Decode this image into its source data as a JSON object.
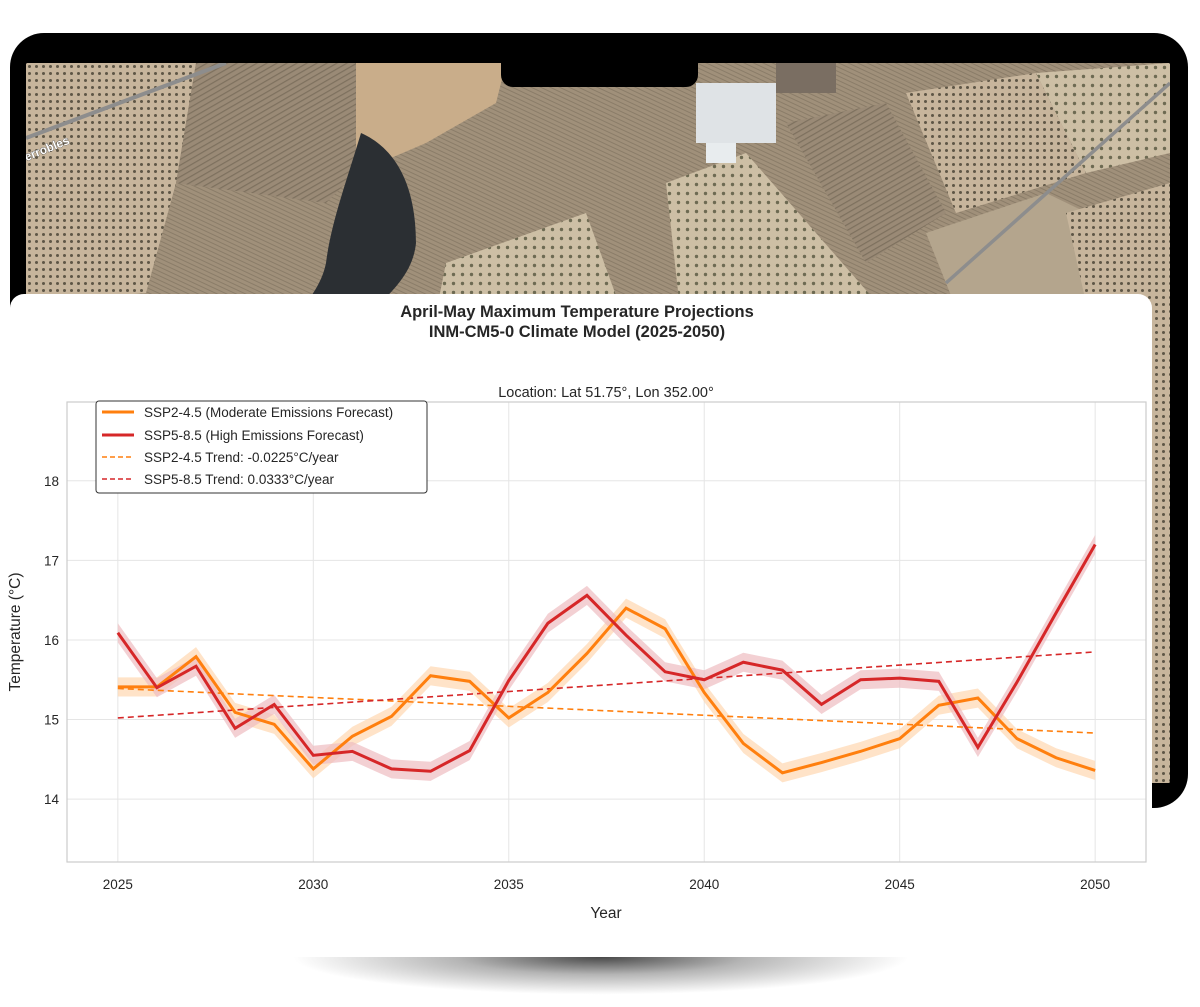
{
  "background": {
    "map_road_label": "errobles"
  },
  "colors": {
    "ssp245": "#ff7f0e",
    "ssp585": "#d62728",
    "ssp245_band": "#ffd7b0",
    "ssp585_band": "#eebcc0",
    "grid": "#e5e5e5",
    "spine": "#cccccc"
  },
  "chart_data": {
    "type": "line",
    "title_line1": "April-May Maximum Temperature Projections",
    "title_line2": "INM-CM5-0 Climate Model (2025-2050)",
    "subtitle": "Location: Lat 51.75°, Lon 352.00°",
    "xlabel": "Year",
    "ylabel": "Temperature (°C)",
    "xlim": [
      2023.7,
      2051.3
    ],
    "ylim": [
      13.21,
      18.99
    ],
    "xticks": [
      2025,
      2030,
      2035,
      2040,
      2045,
      2050
    ],
    "xtick_labels": [
      "2025",
      "2030",
      "2035",
      "2040",
      "2045",
      "2050"
    ],
    "yticks": [
      14,
      15,
      16,
      17,
      18
    ],
    "ytick_labels": [
      "14",
      "15",
      "16",
      "17",
      "18"
    ],
    "grid": true,
    "legend_position": "top-left",
    "x": [
      2025,
      2026,
      2027,
      2028,
      2029,
      2030,
      2031,
      2032,
      2033,
      2034,
      2035,
      2036,
      2037,
      2038,
      2039,
      2040,
      2041,
      2042,
      2043,
      2044,
      2045,
      2046,
      2047,
      2048,
      2049,
      2050
    ],
    "series": [
      {
        "name": "SSP2-4.5 (Moderate Emissions Forecast)",
        "key": "ssp245",
        "style": "solid",
        "uncertainty_band": 0.12,
        "values": [
          15.41,
          15.41,
          15.79,
          15.09,
          14.94,
          14.38,
          14.79,
          15.04,
          15.55,
          15.48,
          15.02,
          15.34,
          15.83,
          16.4,
          16.14,
          15.34,
          14.7,
          14.33,
          14.46,
          14.6,
          14.76,
          15.18,
          15.27,
          14.76,
          14.52,
          14.36
        ]
      },
      {
        "name": "SSP5-8.5 (High Emissions Forecast)",
        "key": "ssp585",
        "style": "solid",
        "uncertainty_band": 0.12,
        "values": [
          16.09,
          15.4,
          15.67,
          14.89,
          15.19,
          14.55,
          14.6,
          14.38,
          14.35,
          14.61,
          15.49,
          16.21,
          16.56,
          16.06,
          15.6,
          15.5,
          15.72,
          15.62,
          15.19,
          15.5,
          15.52,
          15.48,
          14.65,
          15.47,
          16.34,
          17.2
        ]
      }
    ],
    "trends": [
      {
        "name": "SSP2-4.5 Trend: -0.0225°C/year",
        "key": "ssp245",
        "style": "dashed",
        "slope": -0.0225,
        "start": [
          2025,
          15.39
        ],
        "end": [
          2050,
          14.83
        ]
      },
      {
        "name": "SSP5-8.5 Trend: 0.0333°C/year",
        "key": "ssp585",
        "style": "dashed",
        "slope": 0.0333,
        "start": [
          2025,
          15.02
        ],
        "end": [
          2050,
          15.85
        ]
      }
    ]
  }
}
